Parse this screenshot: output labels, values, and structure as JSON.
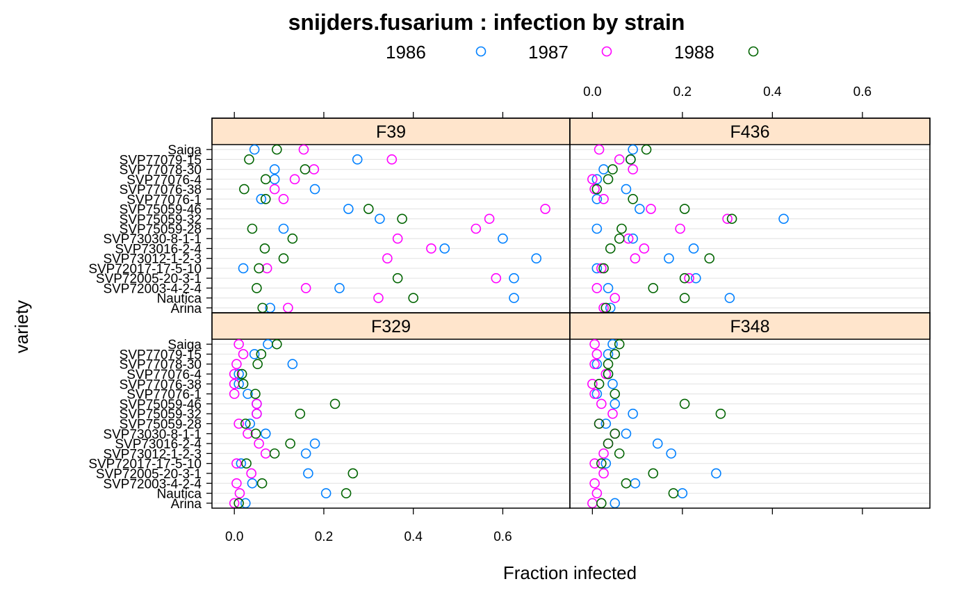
{
  "chart_data": {
    "type": "scatter",
    "title": "snijders.fusarium : infection by strain",
    "xlabel": "Fraction infected",
    "ylabel": "variety",
    "xlim": [
      -0.05,
      0.75
    ],
    "x_ticks": [
      "0.0",
      "0.2",
      "0.4",
      "0.6"
    ],
    "x_tick_values": [
      0.0,
      0.2,
      0.4,
      0.6
    ],
    "grid": true,
    "legend_position": "top",
    "colors": {
      "1986": "#0080ff",
      "1987": "#ff00ff",
      "1988": "#006400",
      "strip": "#ffe5cc"
    },
    "series": [
      {
        "name": "1986"
      },
      {
        "name": "1987"
      },
      {
        "name": "1988"
      }
    ],
    "categories": [
      "Saiga",
      "SVP77079-15",
      "SVP77078-30",
      "SVP77076-4",
      "SVP77076-38",
      "SVP77076-1",
      "SVP75059-46",
      "SVP75059-32",
      "SVP75059-28",
      "SVP73030-8-1-1",
      "SVP73016-2-4",
      "SVP73012-1-2-3",
      "SVP72017-17-5-10",
      "SVP72005-20-3-1",
      "SVP72003-4-2-4",
      "Nautica",
      "Arina"
    ],
    "panels": [
      {
        "strain": "F39",
        "values": {
          "1986": [
            0.045,
            0.275,
            0.09,
            0.09,
            0.18,
            0.06,
            0.255,
            0.325,
            0.11,
            0.6,
            0.47,
            0.675,
            0.02,
            0.625,
            0.235,
            0.625,
            0.08
          ],
          "1987": [
            0.155,
            0.352,
            0.178,
            0.135,
            0.09,
            0.11,
            0.695,
            0.57,
            0.54,
            0.365,
            0.44,
            0.342,
            0.073,
            0.585,
            0.16,
            0.322,
            0.12
          ],
          "1988": [
            0.095,
            0.033,
            0.158,
            0.07,
            0.022,
            0.07,
            0.3,
            0.375,
            0.04,
            0.13,
            0.068,
            0.11,
            0.055,
            0.365,
            0.05,
            0.4,
            0.063
          ]
        }
      },
      {
        "strain": "F436",
        "values": {
          "1986": [
            0.09,
            0.085,
            0.025,
            0.01,
            0.075,
            0.01,
            0.105,
            0.425,
            0.01,
            0.09,
            0.225,
            0.17,
            0.01,
            0.23,
            0.035,
            0.305,
            0.04
          ],
          "1987": [
            0.015,
            0.06,
            0.09,
            0.0,
            0.005,
            0.025,
            0.13,
            0.3,
            0.195,
            0.08,
            0.115,
            0.095,
            0.02,
            0.215,
            0.01,
            0.05,
            0.025
          ],
          "1988": [
            0.12,
            0.085,
            0.045,
            0.035,
            0.01,
            0.09,
            0.205,
            0.31,
            0.065,
            0.06,
            0.04,
            0.26,
            0.025,
            0.205,
            0.135,
            0.205,
            0.03
          ]
        }
      },
      {
        "strain": "F329",
        "values": {
          "1986": [
            0.075,
            0.045,
            0.13,
            0.01,
            0.01,
            0.03,
            0.05,
            0.05,
            0.035,
            0.07,
            0.18,
            0.16,
            0.015,
            0.165,
            0.04,
            0.205,
            0.025
          ],
          "1987": [
            0.01,
            0.02,
            0.005,
            0.0,
            0.0,
            0.0,
            0.05,
            0.05,
            0.01,
            0.03,
            0.055,
            0.07,
            0.005,
            0.038,
            0.005,
            0.012,
            0.0
          ],
          "1988": [
            0.095,
            0.06,
            0.052,
            0.017,
            0.02,
            0.047,
            0.225,
            0.147,
            0.025,
            0.048,
            0.125,
            0.09,
            0.027,
            0.265,
            0.062,
            0.25,
            0.01
          ]
        }
      },
      {
        "strain": "F348",
        "values": {
          "1986": [
            0.045,
            0.035,
            0.01,
            0.035,
            0.045,
            0.01,
            0.05,
            0.09,
            0.03,
            0.075,
            0.145,
            0.175,
            0.03,
            0.275,
            0.095,
            0.2,
            0.05
          ],
          "1987": [
            0.005,
            0.01,
            0.005,
            0.03,
            0.0,
            0.005,
            0.02,
            0.045,
            0.015,
            0.05,
            0.035,
            0.025,
            0.005,
            0.025,
            0.005,
            0.01,
            0.0
          ],
          "1988": [
            0.06,
            0.05,
            0.035,
            0.035,
            0.015,
            0.05,
            0.205,
            0.285,
            0.015,
            0.05,
            0.035,
            0.06,
            0.02,
            0.135,
            0.075,
            0.18,
            0.02
          ]
        }
      }
    ]
  }
}
